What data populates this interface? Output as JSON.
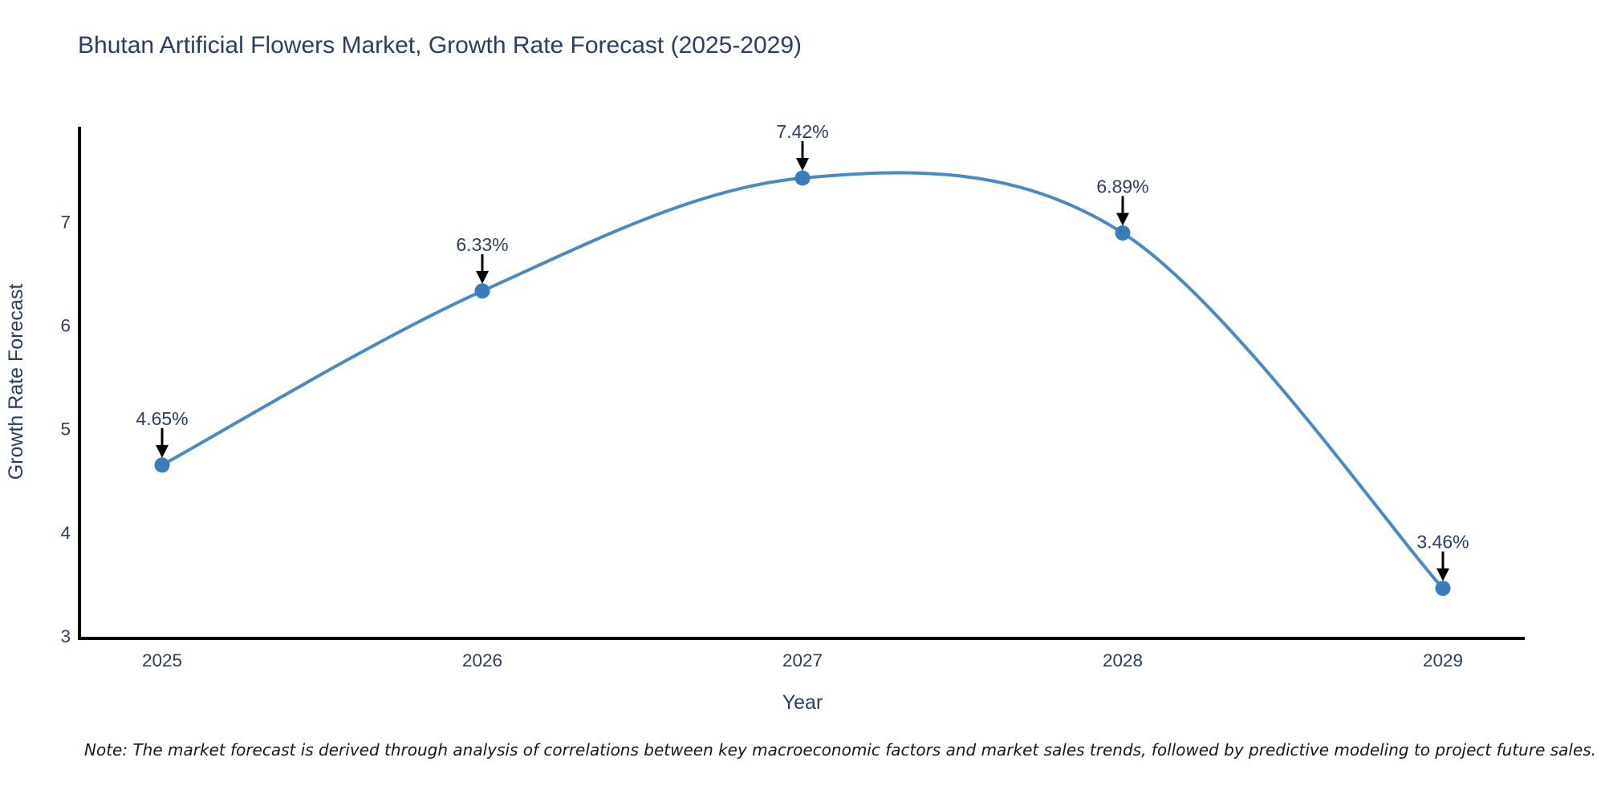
{
  "title": "Bhutan Artificial Flowers Market, Growth Rate Forecast (2025-2029)",
  "note": "Note: The market forecast is derived through analysis of correlations between key macroeconomic factors and market sales trends, followed by predictive modeling to project future sales.",
  "colors": {
    "line": "#4a89c4",
    "marker": "#3a7cba",
    "axis": "#000000",
    "arrow": "#000000",
    "text": "#2a3f5f",
    "background": "#ffffff"
  },
  "chart_data": {
    "type": "line",
    "title": "Bhutan Artificial Flowers Market, Growth Rate Forecast (2025-2029)",
    "categories": [
      "2025",
      "2026",
      "2027",
      "2028",
      "2029"
    ],
    "values": [
      4.65,
      6.33,
      7.42,
      6.89,
      3.46
    ],
    "point_labels": [
      "4.65%",
      "6.33%",
      "7.42%",
      "6.89%",
      "3.46%"
    ],
    "xlabel": "Year",
    "ylabel": "Growth Rate Forecast",
    "yticks": [
      3,
      4,
      5,
      6,
      7
    ],
    "ylim": [
      3,
      7.9
    ],
    "line_shape": "spline",
    "markers": true,
    "grid": false,
    "legend": false,
    "annotation_style": "down-arrow-to-point"
  }
}
